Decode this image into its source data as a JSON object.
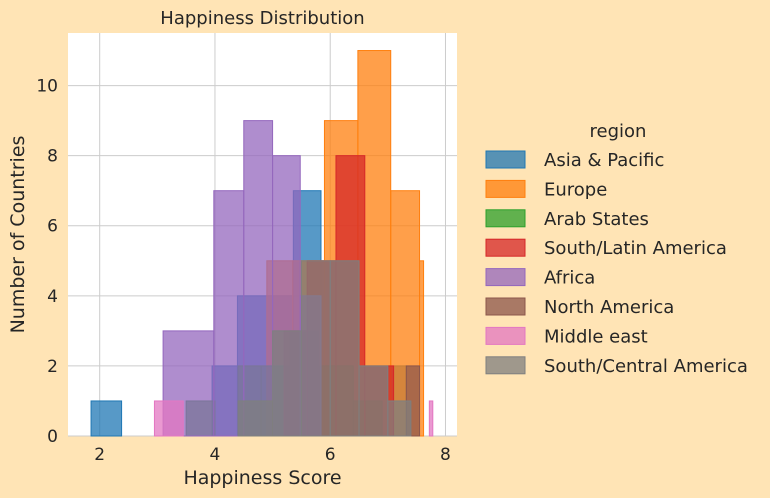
{
  "chart_data": {
    "type": "histogram",
    "title": "Happiness Distribution",
    "xlabel": "Happiness Score",
    "ylabel": "Number of Countries",
    "xlim": [
      1.45,
      8.2
    ],
    "ylim": [
      0,
      11.5
    ],
    "xticks": [
      2,
      4,
      6,
      8
    ],
    "yticks": [
      0,
      2,
      4,
      6,
      8,
      10
    ],
    "grid": true,
    "legend": {
      "title": "region",
      "placement": "right"
    },
    "series": [
      {
        "name": "Asia & Pacific",
        "color": "#1f77b4",
        "bins": [
          {
            "x0": 1.85,
            "x1": 2.38,
            "y": 1
          },
          {
            "x0": 3.95,
            "x1": 4.39,
            "y": 2
          },
          {
            "x0": 4.39,
            "x1": 5.36,
            "y": 4
          },
          {
            "x0": 5.36,
            "x1": 5.84,
            "y": 7
          },
          {
            "x0": 5.84,
            "x1": 6.48,
            "y": 5
          },
          {
            "x0": 6.48,
            "x1": 7.32,
            "y": 2
          }
        ]
      },
      {
        "name": "Europe",
        "color": "#ff7f0e",
        "bins": [
          {
            "x0": 4.9,
            "x1": 5.35,
            "y": 5
          },
          {
            "x0": 5.35,
            "x1": 5.9,
            "y": 5
          },
          {
            "x0": 5.9,
            "x1": 6.48,
            "y": 9
          },
          {
            "x0": 6.48,
            "x1": 7.05,
            "y": 11
          },
          {
            "x0": 7.05,
            "x1": 7.55,
            "y": 7
          },
          {
            "x0": 7.55,
            "x1": 7.62,
            "y": 5
          }
        ]
      },
      {
        "name": "Arab States",
        "color": "#2ca02c",
        "bins": [
          {
            "x0": 3.5,
            "x1": 4.0,
            "y": 1
          },
          {
            "x0": 4.4,
            "x1": 4.8,
            "y": 2
          },
          {
            "x0": 4.8,
            "x1": 5.3,
            "y": 2
          },
          {
            "x0": 5.3,
            "x1": 5.8,
            "y": 3
          },
          {
            "x0": 5.8,
            "x1": 6.4,
            "y": 2
          },
          {
            "x0": 6.4,
            "x1": 6.9,
            "y": 1
          }
        ]
      },
      {
        "name": "South/Latin America",
        "color": "#d62728",
        "bins": [
          {
            "x0": 5.2,
            "x1": 5.6,
            "y": 3
          },
          {
            "x0": 5.6,
            "x1": 6.1,
            "y": 5
          },
          {
            "x0": 6.1,
            "x1": 6.6,
            "y": 8
          },
          {
            "x0": 6.6,
            "x1": 7.1,
            "y": 2
          }
        ]
      },
      {
        "name": "Africa",
        "color": "#9467bd",
        "bins": [
          {
            "x0": 3.1,
            "x1": 3.98,
            "y": 3
          },
          {
            "x0": 3.98,
            "x1": 4.5,
            "y": 7
          },
          {
            "x0": 4.5,
            "x1": 5.0,
            "y": 9
          },
          {
            "x0": 5.0,
            "x1": 5.48,
            "y": 8
          },
          {
            "x0": 5.48,
            "x1": 5.84,
            "y": 4
          }
        ]
      },
      {
        "name": "North America",
        "color": "#8c564b",
        "bins": [
          {
            "x0": 7.32,
            "x1": 7.55,
            "y": 2
          }
        ]
      },
      {
        "name": "Middle east",
        "color": "#e377c2",
        "bins": [
          {
            "x0": 2.95,
            "x1": 3.45,
            "y": 1
          },
          {
            "x0": 7.72,
            "x1": 7.78,
            "y": 1
          }
        ]
      },
      {
        "name": "South/Central America",
        "color": "#7f7f7f",
        "bins": [
          {
            "x0": 4.4,
            "x1": 5.0,
            "y": 1
          },
          {
            "x0": 5.0,
            "x1": 5.5,
            "y": 3
          },
          {
            "x0": 5.5,
            "x1": 6.0,
            "y": 5
          },
          {
            "x0": 6.0,
            "x1": 6.5,
            "y": 5
          },
          {
            "x0": 6.5,
            "x1": 7.0,
            "y": 2
          },
          {
            "x0": 7.0,
            "x1": 7.4,
            "y": 1
          }
        ]
      }
    ]
  }
}
